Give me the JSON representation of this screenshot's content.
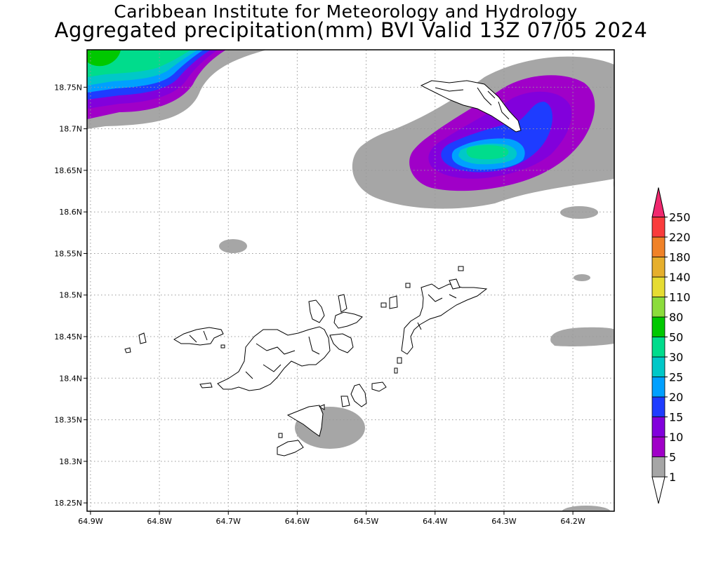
{
  "header": {
    "title_line1": "Caribbean Institute for Meteorology and Hydrology",
    "title_line2": "Aggregated precipitation(mm) BVI Valid 13Z 07/05 2024"
  },
  "map": {
    "lon_range": [
      -64.905,
      -64.14
    ],
    "lat_range": [
      18.24,
      18.795
    ],
    "lon_ticks": [
      {
        "value": -64.9,
        "label": "64.9W"
      },
      {
        "value": -64.8,
        "label": "64.8W"
      },
      {
        "value": -64.7,
        "label": "64.7W"
      },
      {
        "value": -64.6,
        "label": "64.6W"
      },
      {
        "value": -64.5,
        "label": "64.5W"
      },
      {
        "value": -64.4,
        "label": "64.4W"
      },
      {
        "value": -64.3,
        "label": "64.3W"
      },
      {
        "value": -64.2,
        "label": "64.2W"
      }
    ],
    "lat_ticks": [
      {
        "value": 18.75,
        "label": "18.75N"
      },
      {
        "value": 18.7,
        "label": "18.7N"
      },
      {
        "value": 18.65,
        "label": "18.65N"
      },
      {
        "value": 18.6,
        "label": "18.6N"
      },
      {
        "value": 18.55,
        "label": "18.55N"
      },
      {
        "value": 18.5,
        "label": "18.5N"
      },
      {
        "value": 18.45,
        "label": "18.45N"
      },
      {
        "value": 18.4,
        "label": "18.4N"
      },
      {
        "value": 18.35,
        "label": "18.35N"
      },
      {
        "value": 18.3,
        "label": "18.3N"
      },
      {
        "value": 18.25,
        "label": "18.25N"
      }
    ],
    "gridlines": true
  },
  "colorbar": {
    "unit": "mm",
    "levels": [
      {
        "label": "1",
        "color": "#ffffff"
      },
      {
        "label": "5",
        "color": "#a6a6a6"
      },
      {
        "label": "10",
        "color": "#a000c8"
      },
      {
        "label": "15",
        "color": "#8200dc"
      },
      {
        "label": "20",
        "color": "#1e3cff"
      },
      {
        "label": "25",
        "color": "#00a0ff"
      },
      {
        "label": "30",
        "color": "#00c8c8"
      },
      {
        "label": "50",
        "color": "#00dc8c"
      },
      {
        "label": "80",
        "color": "#00c800"
      },
      {
        "label": "110",
        "color": "#8cdc3c"
      },
      {
        "label": "140",
        "color": "#e6dc32"
      },
      {
        "label": "180",
        "color": "#e6af2d"
      },
      {
        "label": "220",
        "color": "#f08228"
      },
      {
        "label": "250",
        "color": "#fa3c3c"
      }
    ],
    "top_arrow_color": "#f0286e"
  }
}
